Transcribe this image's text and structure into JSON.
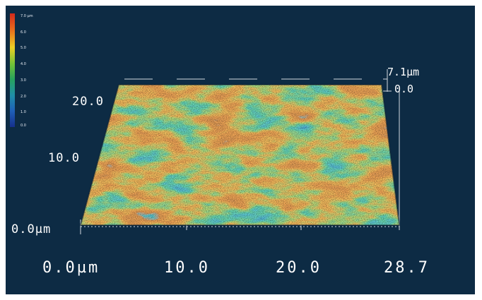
{
  "colors": {
    "background": "#0d2b44",
    "labels": "#ffffff"
  },
  "color_scale": {
    "labels": [
      "7.0 µm",
      "6.0",
      "5.0",
      "4.0",
      "3.0",
      "2.0",
      "1.0",
      "0.0"
    ],
    "gradient": [
      "#d42a1c",
      "#e86a1c",
      "#eccf24",
      "#6fc138",
      "#27a35d",
      "#1f8fa8",
      "#1f5fb8",
      "#16308c"
    ]
  },
  "surface": {
    "z_max_label": "7.1µm",
    "z_min_label": "0.0"
  },
  "y_axis": {
    "ticks": [
      "20.0",
      "10.0",
      "0.0µm"
    ]
  },
  "x_axis": {
    "ticks": [
      "0.0µm",
      "10.0",
      "20.0",
      "28.7"
    ]
  }
}
